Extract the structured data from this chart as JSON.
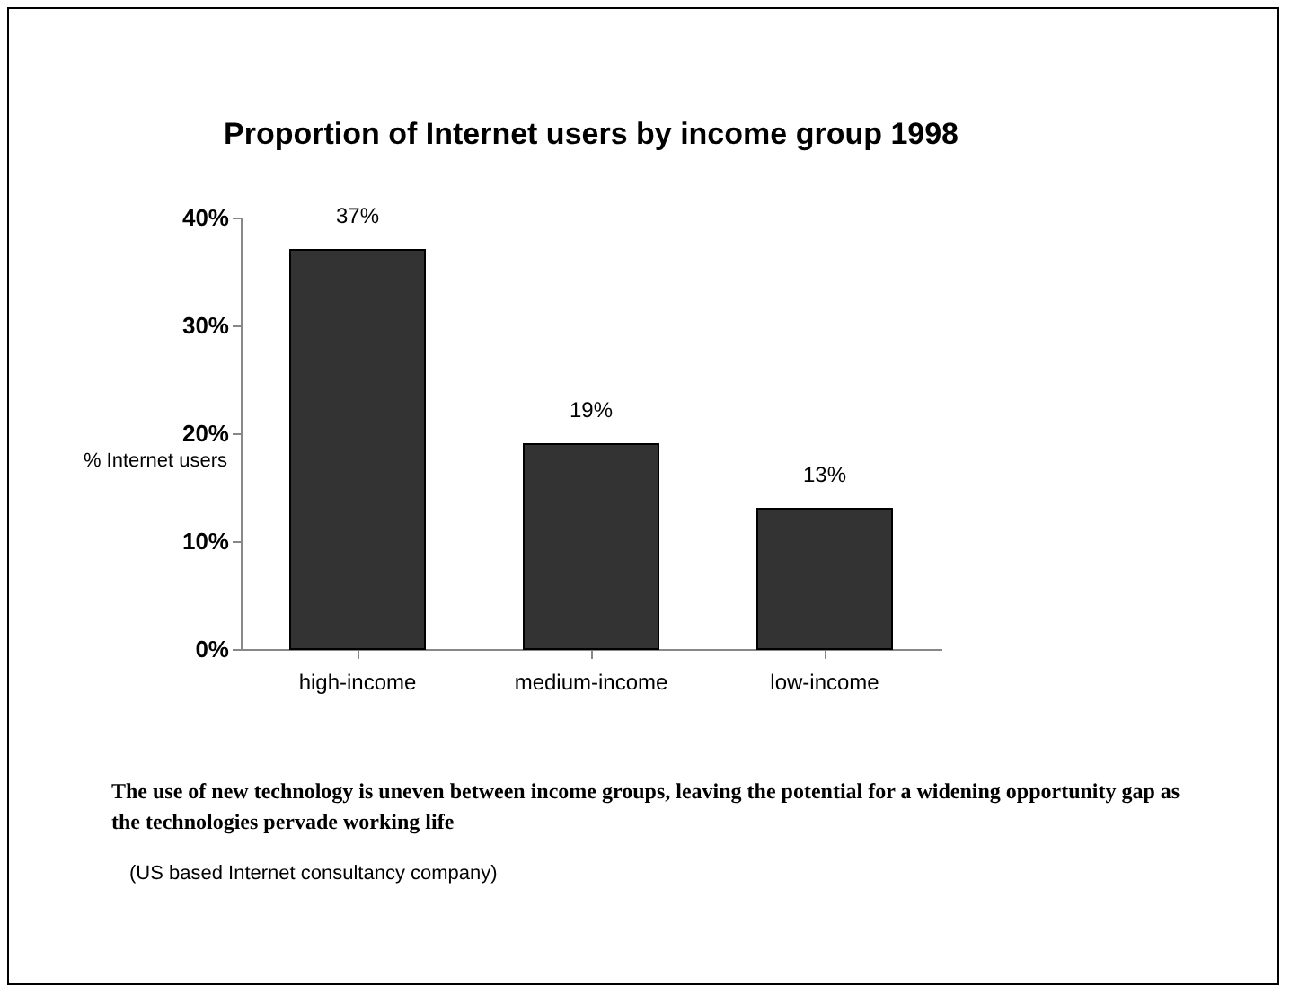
{
  "chart_data": {
    "type": "bar",
    "title": "Proportion of Internet users by income group 1998",
    "ylabel": "% Internet users",
    "categories": [
      "high-income",
      "medium-income",
      "low-income"
    ],
    "values": [
      37,
      19,
      13
    ],
    "color": "#333333",
    "data_labels": true,
    "ylim": [
      0,
      40
    ],
    "yticks": [
      {
        "value": 0,
        "label": "0%"
      },
      {
        "value": 10,
        "label": "10%"
      },
      {
        "value": 20,
        "label": "20%"
      },
      {
        "value": 30,
        "label": "30%"
      },
      {
        "value": 40,
        "label": "40%"
      }
    ],
    "grid": false,
    "value_labels": [
      "37%",
      "19%",
      "13%"
    ],
    "annotations": [
      "The use of new technology is uneven between income groups, leaving the potential for a widening opportunity gap as the technologies pervade working life",
      "(US based Internet consultancy company)"
    ]
  }
}
